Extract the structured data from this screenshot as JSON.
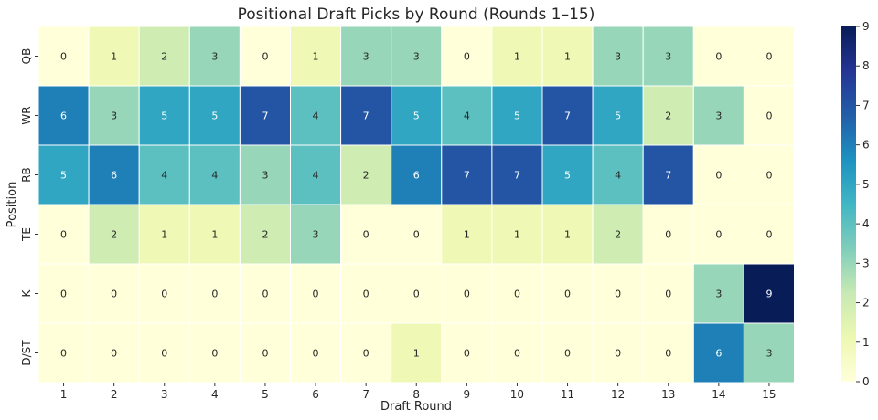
{
  "chart_data": {
    "type": "heatmap",
    "title": "Positional Draft Picks by Round (Rounds 1–15)",
    "xlabel": "Draft Round",
    "ylabel": "Position",
    "x": [
      "1",
      "2",
      "3",
      "4",
      "5",
      "6",
      "7",
      "8",
      "9",
      "10",
      "11",
      "12",
      "13",
      "14",
      "15"
    ],
    "y": [
      "QB",
      "WR",
      "RB",
      "TE",
      "K",
      "D/ST"
    ],
    "values": [
      [
        0,
        1,
        2,
        3,
        0,
        1,
        3,
        3,
        0,
        1,
        1,
        3,
        3,
        0,
        0
      ],
      [
        6,
        3,
        5,
        5,
        7,
        4,
        7,
        5,
        4,
        5,
        7,
        5,
        2,
        3,
        0
      ],
      [
        5,
        6,
        4,
        4,
        3,
        4,
        2,
        6,
        7,
        7,
        5,
        4,
        7,
        0,
        0
      ],
      [
        0,
        2,
        1,
        1,
        2,
        3,
        0,
        0,
        1,
        1,
        1,
        2,
        0,
        0,
        0
      ],
      [
        0,
        0,
        0,
        0,
        0,
        0,
        0,
        0,
        0,
        0,
        0,
        0,
        0,
        3,
        9
      ],
      [
        0,
        0,
        0,
        0,
        0,
        0,
        0,
        1,
        0,
        0,
        0,
        0,
        0,
        6,
        3
      ]
    ],
    "colorscale": "YlGnBu",
    "vmin": 0,
    "vmax": 9,
    "colorbar_ticks": [
      "0",
      "1",
      "2",
      "3",
      "4",
      "5",
      "6",
      "7",
      "8",
      "9"
    ],
    "grid": false
  }
}
